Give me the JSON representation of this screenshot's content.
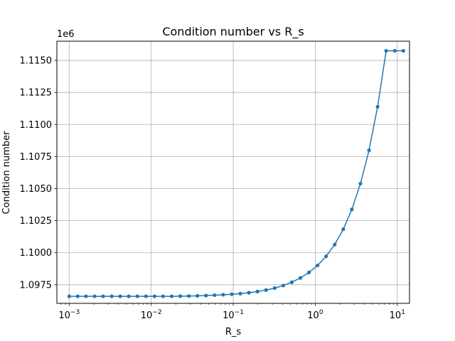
{
  "chart_data": {
    "type": "line",
    "title": "Condition number vs R_s",
    "xlabel": "R_s",
    "ylabel": "Condition number",
    "xscale": "log",
    "xlim": [
      0.000708,
      14.1
    ],
    "ylim": [
      1096050.0,
      1116500.0
    ],
    "y_offset_label": "1e6",
    "grid": true,
    "color": "#1f77b4",
    "x_ticks": [
      {
        "value": 0.001,
        "label_base": "10",
        "label_exp": "−3"
      },
      {
        "value": 0.01,
        "label_base": "10",
        "label_exp": "−2"
      },
      {
        "value": 0.1,
        "label_base": "10",
        "label_exp": "−1"
      },
      {
        "value": 1,
        "label_base": "10",
        "label_exp": "0"
      },
      {
        "value": 10,
        "label_base": "10",
        "label_exp": "1"
      }
    ],
    "y_ticks": [
      {
        "value": 1097500,
        "label": "1.0975"
      },
      {
        "value": 1100000,
        "label": "1.1000"
      },
      {
        "value": 1102500,
        "label": "1.1025"
      },
      {
        "value": 1105000,
        "label": "1.1050"
      },
      {
        "value": 1107500,
        "label": "1.1075"
      },
      {
        "value": 1110000,
        "label": "1.1100"
      },
      {
        "value": 1112500,
        "label": "1.1125"
      },
      {
        "value": 1115000,
        "label": "1.1150"
      }
    ],
    "series": [
      {
        "x": [
          0.001,
          0.00127,
          0.0016,
          0.00204,
          0.00259,
          0.0033,
          0.00419,
          0.00533,
          0.00678,
          0.00863,
          0.01099,
          0.01397,
          0.01778,
          0.02262,
          0.02878,
          0.03661,
          0.04659,
          0.05929,
          0.07543,
          0.09597,
          0.1221,
          0.15535,
          0.19766,
          0.2515,
          0.31999,
          0.40714,
          0.51801,
          0.65908,
          0.83855,
          1.0669,
          1.35746,
          1.72712,
          2.19746,
          2.79587,
          3.55722,
          4.52594,
          5.75844,
          7.3266,
          9.32199,
          11.859
        ],
        "values": [
          1096600,
          1096600,
          1096600,
          1096600,
          1096600,
          1096600,
          1096600,
          1096600,
          1096600,
          1096600,
          1096600,
          1096600,
          1096600,
          1096610,
          1096620,
          1096640,
          1096660,
          1096690,
          1096720,
          1096760,
          1096810,
          1096880,
          1096970,
          1097090,
          1097240,
          1097440,
          1097700,
          1098030,
          1098460,
          1099010,
          1099720,
          1100640,
          1101830,
          1103380,
          1105390,
          1107990,
          1111380,
          1115750,
          1115750,
          1115750
        ]
      }
    ]
  }
}
